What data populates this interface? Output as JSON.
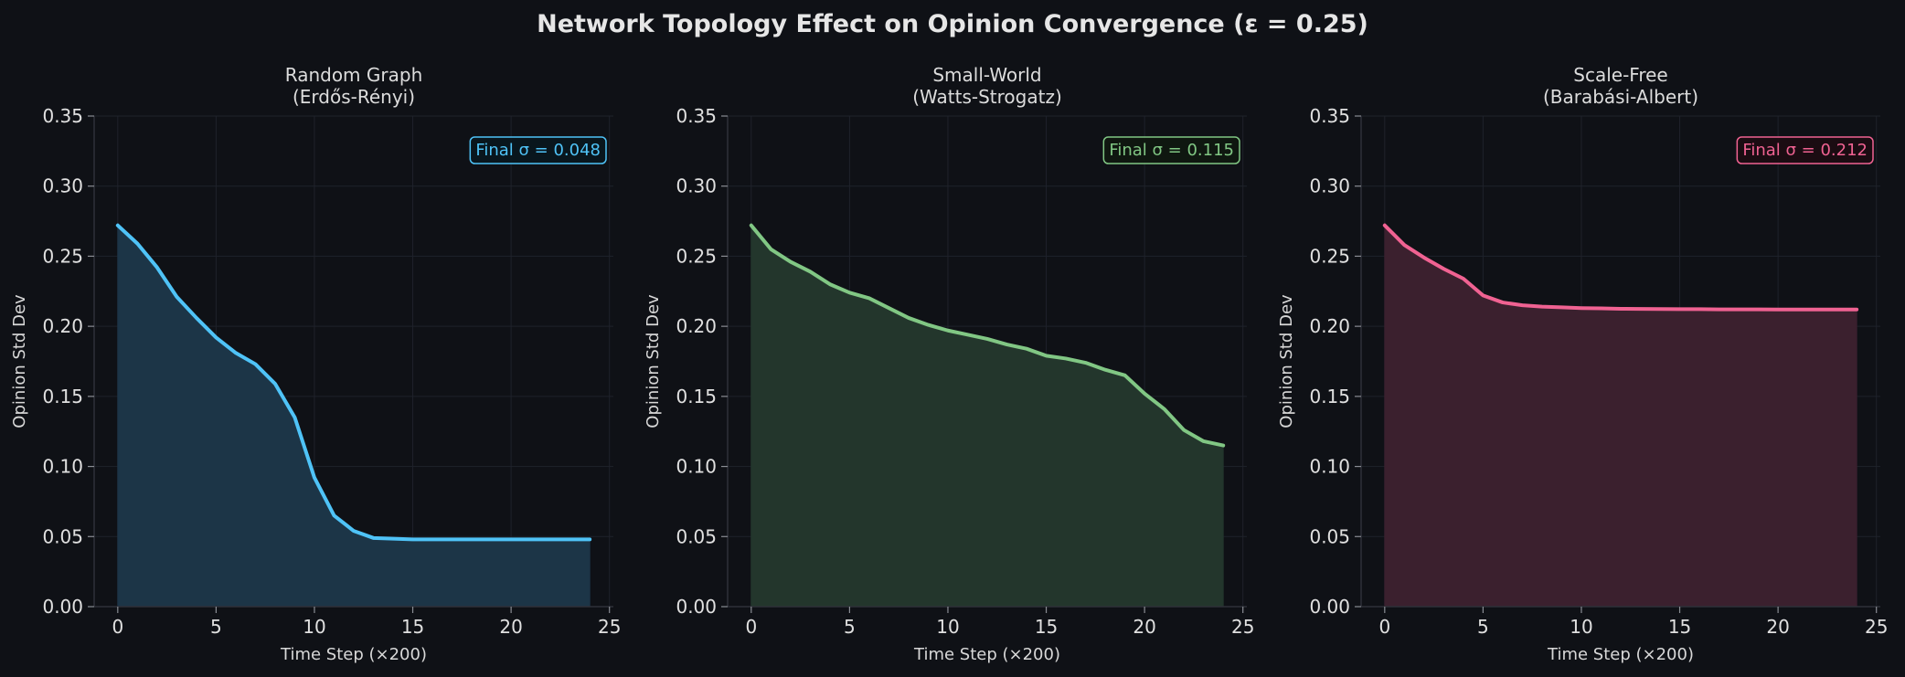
{
  "figure": {
    "title": "Network Topology Effect on Opinion Convergence (ε = 0.25)",
    "background": "#0f1116",
    "axes_color": "#2e3038",
    "grid_color": "#1f222b"
  },
  "chart_data": [
    {
      "type": "area",
      "title_line1": "Random Graph",
      "title_line2": "(Erdős-Rényi)",
      "xlabel": "Time Step (×200)",
      "ylabel": "Opinion Std Dev",
      "xlim": [
        -1.2,
        25.2
      ],
      "ylim": [
        0,
        0.35
      ],
      "xticks": [
        0,
        5,
        10,
        15,
        20,
        25
      ],
      "yticks": [
        0.0,
        0.05,
        0.1,
        0.15,
        0.2,
        0.25,
        0.3,
        0.35
      ],
      "ytick_labels": [
        "0.00",
        "0.05",
        "0.10",
        "0.15",
        "0.20",
        "0.25",
        "0.30",
        "0.35"
      ],
      "grid": true,
      "color": "#4fc3f7",
      "fill_color": "#1c3547",
      "annotation": "Final σ = 0.048",
      "annotation_position": "top-right",
      "series": [
        {
          "x": [
            0,
            1,
            2,
            3,
            4,
            5,
            6,
            7,
            8,
            9,
            10,
            11,
            12,
            13,
            14,
            15,
            16,
            17,
            18,
            19,
            20,
            21,
            22,
            23,
            24
          ],
          "values": [
            0.272,
            0.259,
            0.242,
            0.221,
            0.206,
            0.192,
            0.181,
            0.173,
            0.159,
            0.135,
            0.092,
            0.065,
            0.054,
            0.049,
            0.0485,
            0.048,
            0.048,
            0.048,
            0.048,
            0.048,
            0.048,
            0.048,
            0.048,
            0.048,
            0.048
          ]
        }
      ]
    },
    {
      "type": "area",
      "title_line1": "Small-World",
      "title_line2": "(Watts-Strogatz)",
      "xlabel": "Time Step (×200)",
      "ylabel": "Opinion Std Dev",
      "xlim": [
        -1.2,
        25.2
      ],
      "ylim": [
        0,
        0.35
      ],
      "xticks": [
        0,
        5,
        10,
        15,
        20,
        25
      ],
      "yticks": [
        0.0,
        0.05,
        0.1,
        0.15,
        0.2,
        0.25,
        0.3,
        0.35
      ],
      "ytick_labels": [
        "0.00",
        "0.05",
        "0.10",
        "0.15",
        "0.20",
        "0.25",
        "0.30",
        "0.35"
      ],
      "grid": true,
      "color": "#81c784",
      "fill_color": "#23362c",
      "annotation": "Final σ = 0.115",
      "annotation_position": "top-right",
      "series": [
        {
          "x": [
            0,
            1,
            2,
            3,
            4,
            5,
            6,
            7,
            8,
            9,
            10,
            11,
            12,
            13,
            14,
            15,
            16,
            17,
            18,
            19,
            20,
            21,
            22,
            23,
            24
          ],
          "values": [
            0.272,
            0.255,
            0.246,
            0.239,
            0.23,
            0.224,
            0.22,
            0.213,
            0.206,
            0.201,
            0.197,
            0.194,
            0.191,
            0.187,
            0.184,
            0.179,
            0.177,
            0.174,
            0.169,
            0.165,
            0.152,
            0.141,
            0.126,
            0.118,
            0.115
          ]
        }
      ]
    },
    {
      "type": "area",
      "title_line1": "Scale-Free",
      "title_line2": "(Barabási-Albert)",
      "xlabel": "Time Step (×200)",
      "ylabel": "Opinion Std Dev",
      "xlim": [
        -1.2,
        25.2
      ],
      "ylim": [
        0,
        0.35
      ],
      "xticks": [
        0,
        5,
        10,
        15,
        20,
        25
      ],
      "yticks": [
        0.0,
        0.05,
        0.1,
        0.15,
        0.2,
        0.25,
        0.3,
        0.35
      ],
      "ytick_labels": [
        "0.00",
        "0.05",
        "0.10",
        "0.15",
        "0.20",
        "0.25",
        "0.30",
        "0.35"
      ],
      "grid": true,
      "color": "#f06292",
      "fill_color": "#3b202e",
      "annotation": "Final σ = 0.212",
      "annotation_position": "top-right",
      "series": [
        {
          "x": [
            0,
            1,
            2,
            3,
            4,
            5,
            6,
            7,
            8,
            9,
            10,
            11,
            12,
            13,
            14,
            15,
            16,
            17,
            18,
            19,
            20,
            21,
            22,
            23,
            24
          ],
          "values": [
            0.272,
            0.258,
            0.249,
            0.241,
            0.234,
            0.222,
            0.217,
            0.215,
            0.214,
            0.2135,
            0.213,
            0.2128,
            0.2125,
            0.2124,
            0.2123,
            0.2122,
            0.2122,
            0.2121,
            0.2121,
            0.2121,
            0.212,
            0.212,
            0.212,
            0.212,
            0.212
          ]
        }
      ]
    }
  ]
}
